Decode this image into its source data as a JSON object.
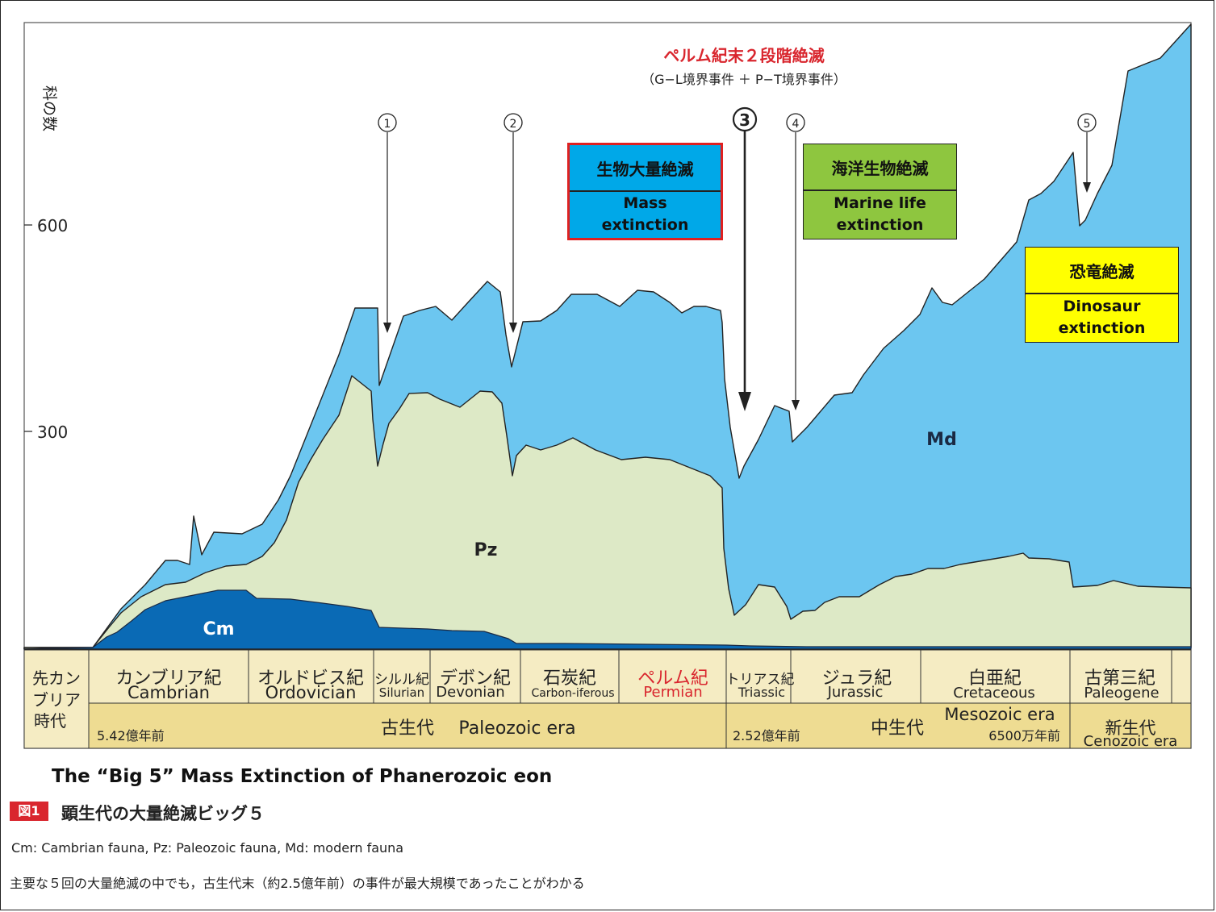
{
  "chart_data": {
    "type": "area",
    "ylabel": "科の数",
    "ylim": [
      0,
      900
    ],
    "yticks": [
      300,
      600
    ],
    "title": "ペルム紀末２段階絶滅",
    "subtitle": "（G−L境界事件 ＋ P−T境界事件）",
    "series": [
      {
        "name": "Cm",
        "color": "#0a6ab5"
      },
      {
        "name": "Pz",
        "color": "#dde9c6"
      },
      {
        "name": "Md",
        "color": "#6cc6f0"
      }
    ],
    "events": [
      {
        "label": "①"
      },
      {
        "label": "②"
      },
      {
        "label": "③"
      },
      {
        "label": "④"
      },
      {
        "label": "⑤"
      }
    ],
    "periods": [
      {
        "jp": "先カンブリア時代",
        "jp_lines": [
          "先カン",
          "ブリア",
          "時代"
        ],
        "en": ""
      },
      {
        "jp": "カンブリア紀",
        "en": "Cambrian"
      },
      {
        "jp": "オルドビス紀",
        "en": "Ordovician"
      },
      {
        "jp": "シルル紀",
        "en": "Silurian"
      },
      {
        "jp": "デボン紀",
        "en": "Devonian"
      },
      {
        "jp": "石炭紀",
        "en": "Carbon-iferous"
      },
      {
        "jp": "ペルム紀",
        "en": "Permian",
        "highlight": "#d9262e"
      },
      {
        "jp": "トリアス紀",
        "en": "Triassic"
      },
      {
        "jp": "ジュラ紀",
        "en": "Jurassic"
      },
      {
        "jp": "白亜紀",
        "en": "Cretaceous"
      },
      {
        "jp": "古第三紀",
        "en": "Paleogene"
      }
    ],
    "eras": {
      "paleozoic": {
        "start": "5.42億年前",
        "jp": "古生代",
        "en": "Paleozoic era"
      },
      "mesozoic": {
        "start": "2.52億年前",
        "jp": "中生代",
        "en": "Mesozoic era",
        "end": "6500万年前"
      },
      "cenozoic": {
        "jp": "新生代",
        "en": "Cenozoic era"
      }
    }
  },
  "boxes": {
    "mass": {
      "jp": "生物大量絶滅",
      "en": "Mass extinction",
      "color": "#00a8e8",
      "border": "#e02020"
    },
    "marine": {
      "jp": "海洋生物絶滅",
      "en": "Marine life extinction",
      "color": "#8ec63f"
    },
    "dino": {
      "jp": "恐竜絶滅",
      "en": "Dinosaur extinction",
      "color": "#ffff00"
    }
  },
  "captions": {
    "english_title": "The “Big 5” Mass Extinction of Phanerozoic eon",
    "fig_label": "図1",
    "fig_title": "顕生代の大量絶滅ビッグ５",
    "legend": "Cm: Cambrian fauna, Pz: Paleozoic fauna, Md: modern fauna",
    "note": "主要な５回の大量絶滅の中でも，古生代末（約2.5億年前）の事件が最大規模であったことがわかる"
  }
}
